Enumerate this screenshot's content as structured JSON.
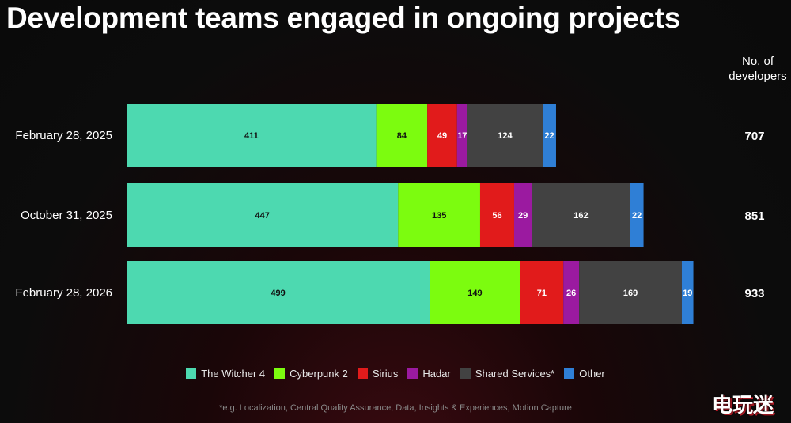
{
  "title": "Development teams engaged in ongoing projects",
  "total_header": "No. of developers",
  "footnote": "*e.g. Localization, Central Quality Assurance, Data, Insights & Experiences, Motion Capture",
  "watermark": "电玩迷",
  "chart_data": {
    "type": "bar",
    "orientation": "horizontal",
    "stacked": true,
    "categories": [
      "February 28, 2025",
      "October 31, 2025",
      "February 28, 2026"
    ],
    "series": [
      {
        "name": "The Witcher 4",
        "color": "#4dd9b0",
        "values": [
          411,
          447,
          499
        ]
      },
      {
        "name": "Cyberpunk 2",
        "color": "#7cfc0f",
        "values": [
          84,
          135,
          149
        ]
      },
      {
        "name": "Sirius",
        "color": "#e11b1b",
        "values": [
          49,
          56,
          71
        ]
      },
      {
        "name": "Hadar",
        "color": "#9b1aa0",
        "values": [
          17,
          29,
          26
        ]
      },
      {
        "name": "Shared Services*",
        "color": "#424242",
        "values": [
          124,
          162,
          169
        ]
      },
      {
        "name": "Other",
        "color": "#2f7fd6",
        "values": [
          22,
          22,
          19
        ]
      }
    ],
    "totals": [
      707,
      851,
      933
    ],
    "legend": "bottom-center",
    "grid": false
  }
}
